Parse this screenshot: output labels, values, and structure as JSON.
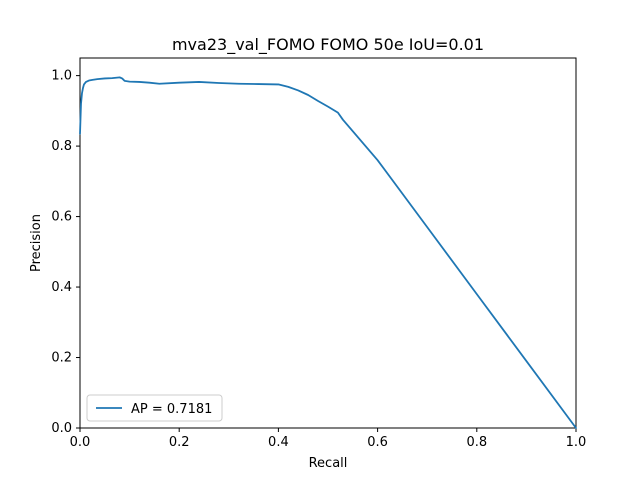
{
  "chart_data": {
    "type": "line",
    "title": "mva23_val_FOMO FOMO 50e IoU=0.01",
    "xlabel": "Recall",
    "ylabel": "Precision",
    "xlim": [
      0.0,
      1.0
    ],
    "ylim": [
      0.0,
      1.05
    ],
    "xticks": [
      0.0,
      0.2,
      0.4,
      0.6,
      0.8,
      1.0
    ],
    "yticks": [
      0.0,
      0.2,
      0.4,
      0.6,
      0.8,
      1.0
    ],
    "xtick_labels": [
      "0.0",
      "0.2",
      "0.4",
      "0.6",
      "0.8",
      "1.0"
    ],
    "ytick_labels": [
      "0.0",
      "0.2",
      "0.4",
      "0.6",
      "0.8",
      "1.0"
    ],
    "grid": false,
    "legend_position": "lower-left",
    "series": [
      {
        "name": "AP = 0.7181",
        "color": "#1f77b4",
        "x": [
          0.0,
          0.002,
          0.004,
          0.006,
          0.008,
          0.012,
          0.018,
          0.025,
          0.035,
          0.05,
          0.065,
          0.08,
          0.085,
          0.09,
          0.1,
          0.12,
          0.14,
          0.16,
          0.2,
          0.24,
          0.28,
          0.32,
          0.36,
          0.4,
          0.42,
          0.44,
          0.46,
          0.48,
          0.5,
          0.52,
          0.53,
          0.6,
          0.7,
          0.8,
          0.9,
          1.0
        ],
        "y": [
          0.835,
          0.92,
          0.95,
          0.965,
          0.975,
          0.982,
          0.986,
          0.988,
          0.99,
          0.992,
          0.993,
          0.995,
          0.992,
          0.985,
          0.983,
          0.982,
          0.98,
          0.977,
          0.98,
          0.982,
          0.979,
          0.977,
          0.976,
          0.975,
          0.968,
          0.958,
          0.945,
          0.928,
          0.912,
          0.895,
          0.875,
          0.76,
          0.57,
          0.38,
          0.19,
          0.0
        ]
      }
    ]
  }
}
